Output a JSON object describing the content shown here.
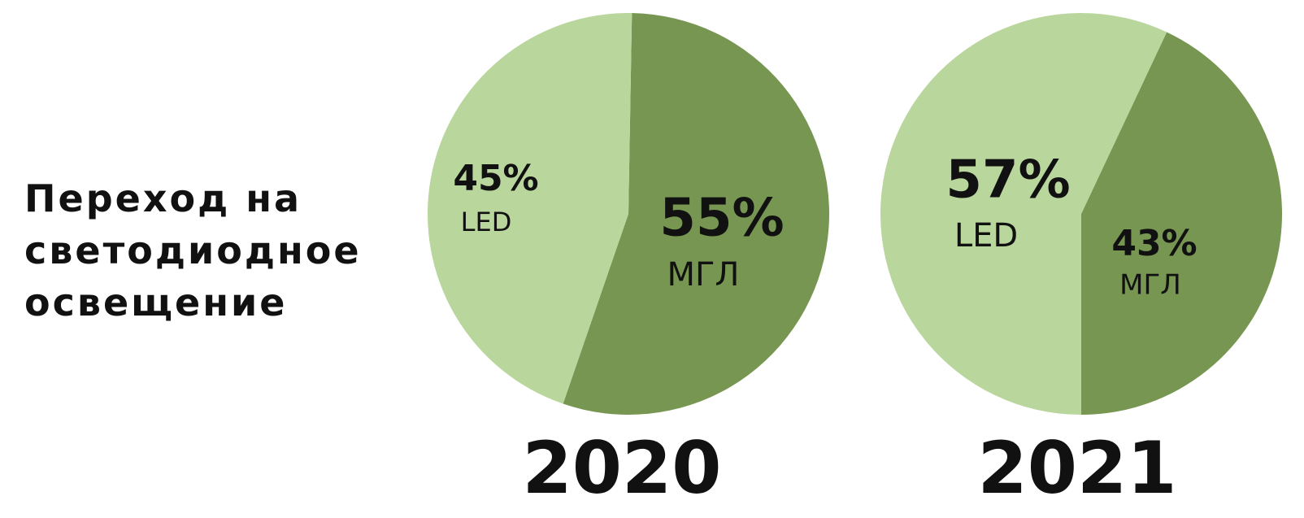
{
  "title": "Переход на светодиодное освещение",
  "chart_data": [
    {
      "type": "pie",
      "title": "2020",
      "categories": [
        "LED",
        "МГЛ"
      ],
      "values": [
        45,
        55
      ],
      "value_labels": [
        "45%",
        "55%"
      ],
      "colors": [
        "#b9d69c",
        "#779651"
      ]
    },
    {
      "type": "pie",
      "title": "2021",
      "categories": [
        "LED",
        "МГЛ"
      ],
      "values": [
        57,
        43
      ],
      "value_labels": [
        "57%",
        "43%"
      ],
      "colors": [
        "#b9d69c",
        "#779651"
      ]
    }
  ]
}
